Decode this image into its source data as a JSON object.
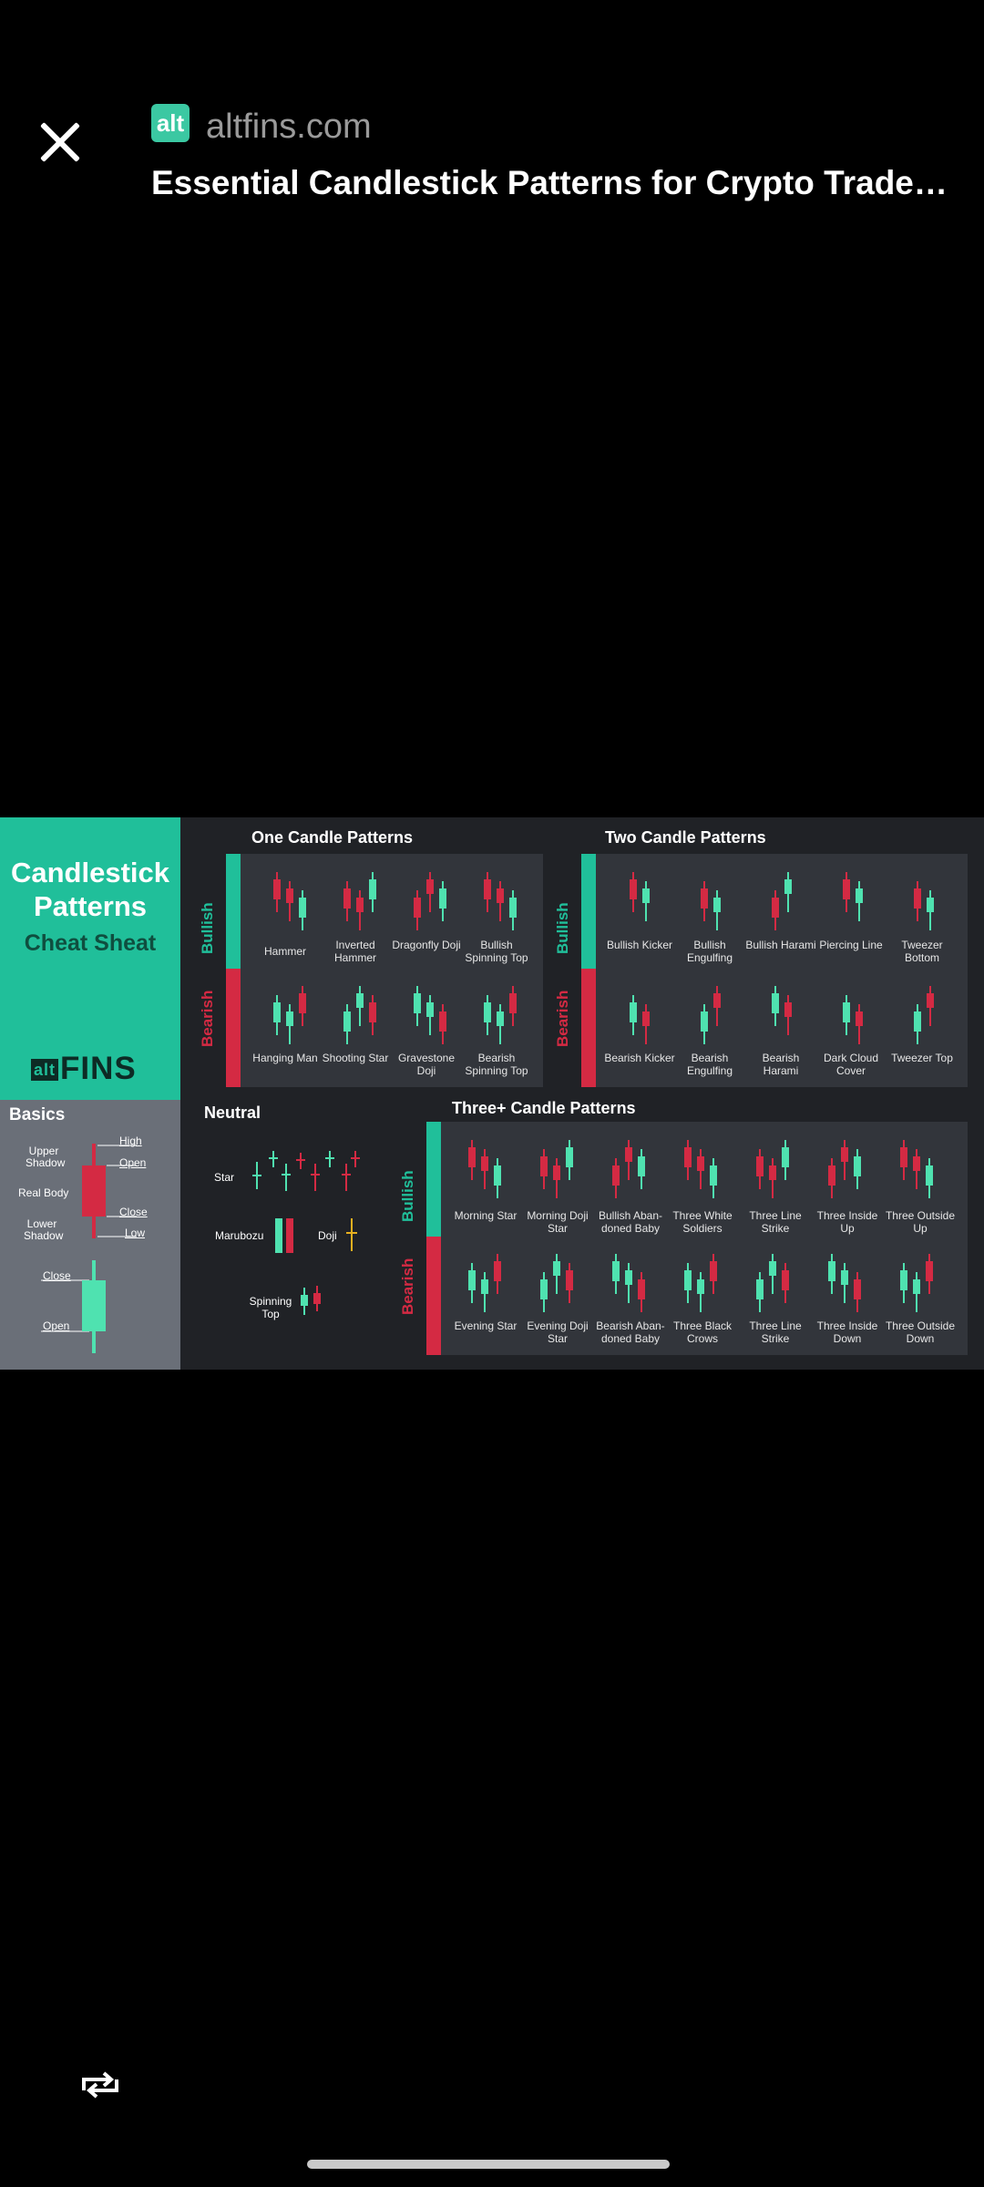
{
  "header": {
    "close_icon": "close-icon",
    "favicon_text": "alt",
    "domain": "altfins.com",
    "title": "Essential Candlestick Patterns for Crypto Traders..."
  },
  "sheet": {
    "brand": {
      "line1": "Candlestick",
      "line2": "Patterns",
      "subtitle": "Cheat Sheat",
      "logo_prefix": "alt",
      "logo": "FINS"
    },
    "basics": {
      "title": "Basics",
      "labels": [
        "Upper Shadow",
        "Real Body",
        "Lower Shadow",
        "High",
        "Open",
        "Close",
        "Low",
        "Close",
        "Open"
      ]
    },
    "one_candle": {
      "title": "One Candle Patterns",
      "bullish_label": "Bullish",
      "bearish_label": "Bearish",
      "bullish": [
        "Hammer",
        "Inverted Hammer",
        "Dragonfly Doji",
        "Bullish Spinning Top"
      ],
      "bearish": [
        "Hanging Man",
        "Shooting Star",
        "Gravestone Doji",
        "Bearish Spinning Top"
      ]
    },
    "two_candle": {
      "title": "Two Candle Patterns",
      "bullish_label": "Bullish",
      "bearish_label": "Bearish",
      "bullish": [
        "Bullish Kicker",
        "Bullish Engulfing",
        "Bullish Harami",
        "Piercing Line",
        "Tweezer Bottom"
      ],
      "bearish": [
        "Bearish Kicker",
        "Bearish Engulfing",
        "Bearish Harami",
        "Dark Cloud Cover",
        "Tweezer Top"
      ]
    },
    "neutral": {
      "title": "Neutral",
      "items": [
        "Star",
        "Marubozu",
        "Doji",
        "Spinning Top"
      ]
    },
    "three_candle": {
      "title": "Three+ Candle Patterns",
      "bullish_label": "Bullish",
      "bearish_label": "Bearish",
      "bullish": [
        "Morning Star",
        "Morning Doji Star",
        "Bullish Aban-doned Baby",
        "Three White Soldiers",
        "Three Line Strike",
        "Three Inside Up",
        "Three Outside Up"
      ],
      "bearish": [
        "Evening Star",
        "Evening Doji Star",
        "Bearish Aban-doned Baby",
        "Three Black Crows",
        "Three Line Strike",
        "Three Inside Down",
        "Three Outside Down"
      ]
    },
    "colors": {
      "bull": "#4fe2b0",
      "bear": "#d42a43",
      "teal": "#20bf9a"
    }
  },
  "footer": {
    "repost_icon": "repost-icon"
  }
}
